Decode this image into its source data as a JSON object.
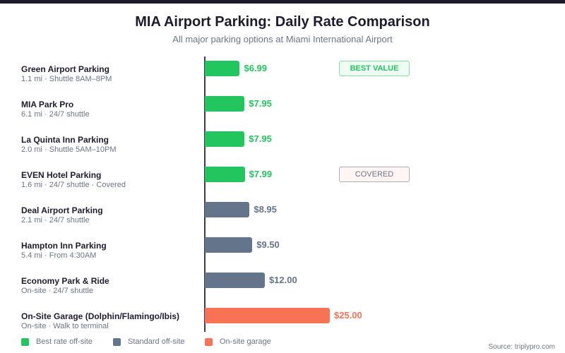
{
  "chart_data": {
    "type": "bar",
    "orientation": "horizontal",
    "title": "MIA Airport Parking: Daily Rate Comparison",
    "subtitle": "All major parking options at Miami International Airport",
    "xlim": [
      0,
      25
    ],
    "grid": false,
    "legend_position": "bottom-left",
    "categories": [
      {
        "name": "Green Airport Parking",
        "detail": "1.1 mi · Shuttle 8AM–8PM",
        "value": 6.99,
        "label": "$6.99",
        "group": "best",
        "badge": "BEST VALUE",
        "badge_style": "best"
      },
      {
        "name": "MIA Park Pro",
        "detail": "6.1 mi · 24/7 shuttle",
        "value": 7.95,
        "label": "$7.95",
        "group": "best"
      },
      {
        "name": "La Quinta Inn Parking",
        "detail": "2.0 mi · Shuttle 5AM–10PM",
        "value": 7.95,
        "label": "$7.95",
        "group": "best"
      },
      {
        "name": "EVEN Hotel Parking",
        "detail": "1.6 mi · 24/7 shuttle · Covered",
        "value": 7.99,
        "label": "$7.99",
        "group": "best",
        "badge": "COVERED",
        "badge_style": "covered"
      },
      {
        "name": "Deal Airport Parking",
        "detail": "2.1 mi · 24/7 shuttle",
        "value": 8.95,
        "label": "$8.95",
        "group": "standard"
      },
      {
        "name": "Hampton Inn Parking",
        "detail": "5.4 mi · From 4:30AM",
        "value": 9.5,
        "label": "$9.50",
        "group": "standard"
      },
      {
        "name": "Economy Park & Ride",
        "detail": "On-site · 24/7 shuttle",
        "value": 12.0,
        "label": "$12.00",
        "group": "standard"
      },
      {
        "name": "On-Site Garage (Dolphin/Flamingo/Ibis)",
        "detail": "On-site · Walk to terminal",
        "value": 25.0,
        "label": "$25.00",
        "group": "onsite"
      }
    ],
    "legend": [
      {
        "key": "best",
        "label": "Best rate off-site",
        "color": "#22c55e"
      },
      {
        "key": "standard",
        "label": "Standard off-site",
        "color": "#64748b"
      },
      {
        "key": "onsite",
        "label": "On-site garage",
        "color": "#f87356"
      }
    ]
  },
  "source": "Source: triplypro.com"
}
